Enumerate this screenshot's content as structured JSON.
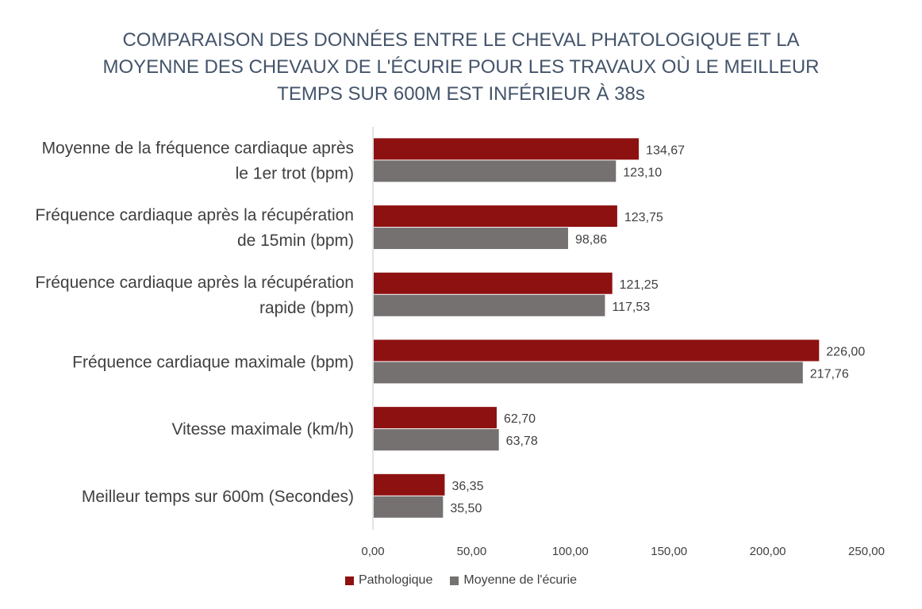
{
  "chart_data": {
    "type": "bar",
    "orientation": "horizontal",
    "title_lines": [
      "COMPARAISON DES DONNÉES ENTRE LE CHEVAL PHATOLOGIQUE ET LA",
      "MOYENNE DES CHEVAUX DE L'ÉCURIE POUR LES TRAVAUX OÙ LE MEILLEUR",
      "TEMPS SUR 600M EST INFÉRIEUR À 38s"
    ],
    "categories": [
      [
        "Moyenne de la fréquence cardiaque après",
        "le 1er trot (bpm)"
      ],
      [
        "Fréquence cardiaque après la récupération",
        "de 15min (bpm)"
      ],
      [
        "Fréquence cardiaque après la récupération",
        "rapide (bpm)"
      ],
      [
        "Fréquence cardiaque maximale (bpm)"
      ],
      [
        "Vitesse maximale (km/h)"
      ],
      [
        "Meilleur temps sur 600m (Secondes)"
      ]
    ],
    "series": [
      {
        "name": "Pathologique",
        "color": "#8e1111",
        "values": [
          134.67,
          123.75,
          121.25,
          226.0,
          62.7,
          36.35
        ],
        "labels": [
          "134,67",
          "123,75",
          "121,25",
          "226,00",
          "62,70",
          "36,35"
        ]
      },
      {
        "name": "Moyenne de l'écurie",
        "color": "#767171",
        "values": [
          123.1,
          98.86,
          117.53,
          217.76,
          63.78,
          35.5
        ],
        "labels": [
          "123,10",
          "98,86",
          "117,53",
          "217,76",
          "63,78",
          "35,50"
        ]
      }
    ],
    "xlim": [
      0,
      250
    ],
    "ticks": [
      0,
      50,
      100,
      150,
      200,
      250
    ],
    "tick_labels": [
      "0,00",
      "50,00",
      "100,00",
      "150,00",
      "200,00",
      "250,00"
    ],
    "grid": false,
    "legend_position": "bottom"
  }
}
